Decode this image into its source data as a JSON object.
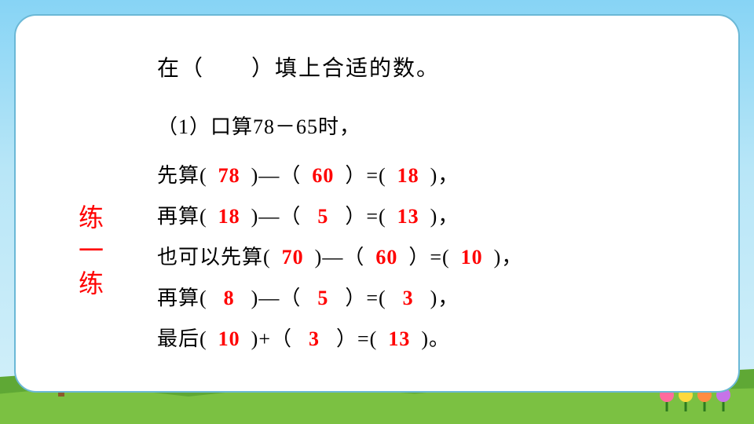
{
  "sidebar": "练一练",
  "title": "在（　　）填上合适的数。",
  "subtitle": "（1）口算78－65时，",
  "lines": {
    "l1": {
      "prefix": "先算(",
      "a": "78",
      "mid1": ")—（",
      "b": "60",
      "mid2": "）=(",
      "c": "18",
      "suffix": ")，"
    },
    "l2": {
      "prefix": "再算(",
      "a": "18",
      "mid1": ")—（",
      "b": "5",
      "mid2": "）=(",
      "c": "13",
      "suffix": ")，"
    },
    "l3": {
      "prefix": "也可以先算(",
      "a": "70",
      "mid1": ")—（",
      "b": "60",
      "mid2": "）=(",
      "c": "10",
      "suffix": ")，"
    },
    "l4": {
      "prefix": "再算(",
      "a": "8",
      "mid1": ")—（",
      "b": "5",
      "mid2": "）=(",
      "c": "3",
      "suffix": ")，"
    },
    "l5": {
      "prefix": "最后(",
      "a": "10",
      "mid1": ")+（",
      "b": "3",
      "mid2": "）=(",
      "c": "13",
      "suffix": ")。"
    }
  },
  "colors": {
    "answer": "#ff0000",
    "text": "#000000",
    "sidebar": "#ff0000",
    "card_bg": "#ffffff",
    "card_border": "#6bb8d6",
    "sky_top": "#87d4f5",
    "grass": "#7bc142"
  }
}
